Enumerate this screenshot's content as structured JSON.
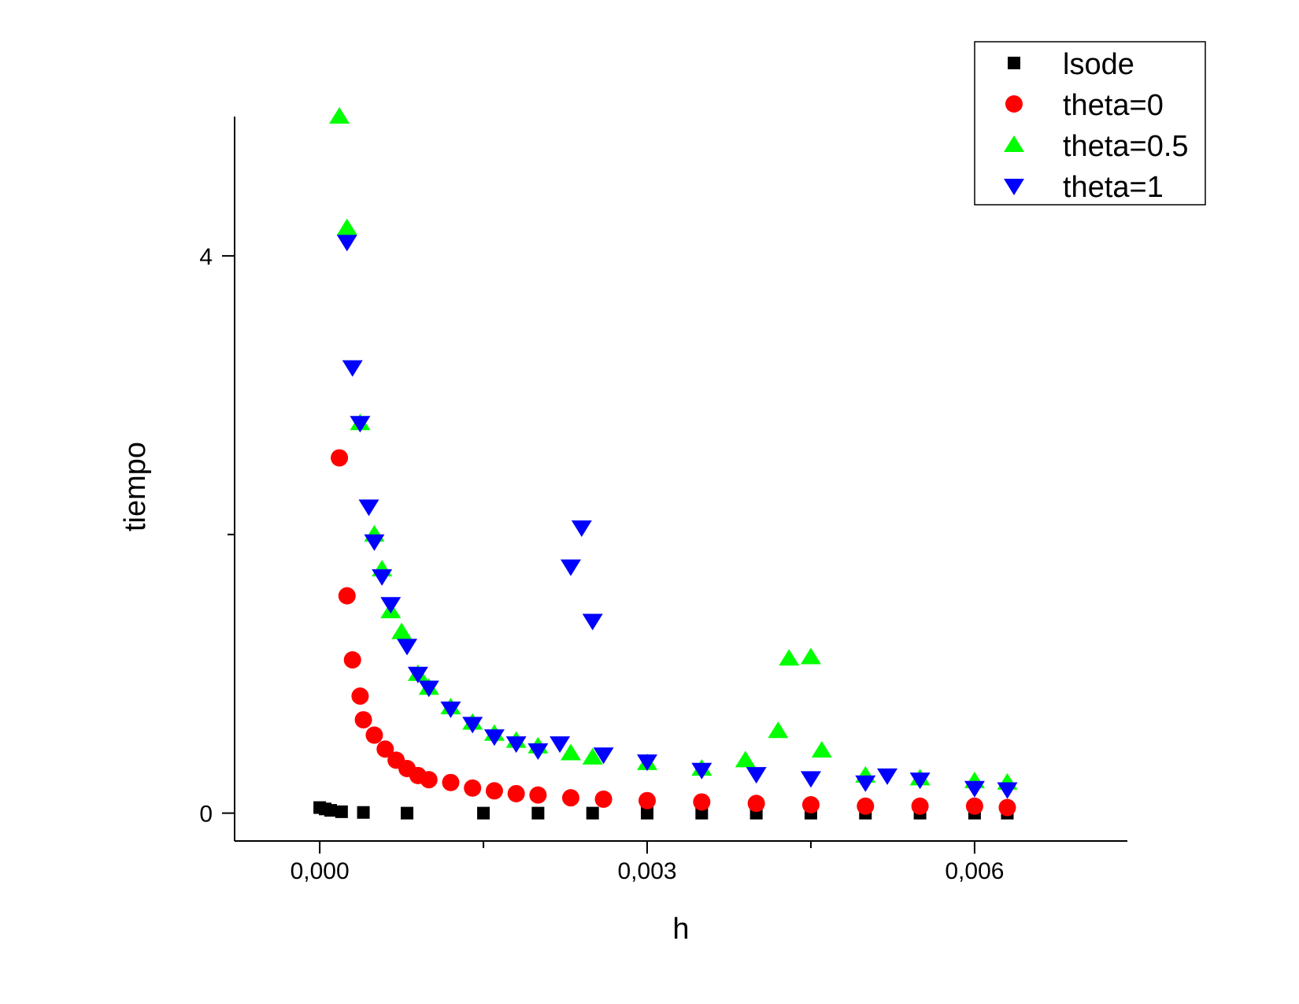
{
  "chart_data": {
    "type": "scatter",
    "title": "",
    "xlabel": "h",
    "ylabel": "tiempo",
    "xlim": [
      -0.00078,
      0.0074
    ],
    "ylim": [
      -0.2,
      5.0
    ],
    "x_ticks": [
      {
        "value": 0.0,
        "label": "0,000"
      },
      {
        "value": 0.003,
        "label": "0,003"
      },
      {
        "value": 0.006,
        "label": "0,006"
      }
    ],
    "x_minor_ticks": [
      0.0015,
      0.0045
    ],
    "y_ticks": [
      {
        "value": 0,
        "label": "0"
      },
      {
        "value": 4,
        "label": "4"
      }
    ],
    "y_minor_ticks": [
      2
    ],
    "legend_position": "top-right",
    "grid": false,
    "series": [
      {
        "name": "lsode",
        "marker": "square",
        "color": "#000000",
        "x": [
          0.0,
          5e-05,
          0.0001,
          0.0002,
          0.0004,
          0.0008,
          0.0015,
          0.002,
          0.0025,
          0.003,
          0.0035,
          0.004,
          0.0045,
          0.005,
          0.0055,
          0.006,
          0.0063
        ],
        "y": [
          0.04,
          0.03,
          0.02,
          0.01,
          0.005,
          0.0,
          0.0,
          0.0,
          0.0,
          0.0,
          0.0,
          0.0,
          0.0,
          0.0,
          0.0,
          0.0,
          0.0
        ]
      },
      {
        "name": "theta=0",
        "marker": "circle",
        "color": "#ff0000",
        "x": [
          0.00018,
          0.00025,
          0.0003,
          0.00037,
          0.0004,
          0.0005,
          0.0006,
          0.0007,
          0.0008,
          0.0009,
          0.001,
          0.0012,
          0.0014,
          0.0016,
          0.0018,
          0.002,
          0.0023,
          0.0026,
          0.003,
          0.0035,
          0.004,
          0.0045,
          0.005,
          0.0055,
          0.006,
          0.0063
        ],
        "y": [
          2.55,
          1.56,
          1.1,
          0.84,
          0.67,
          0.56,
          0.46,
          0.38,
          0.32,
          0.27,
          0.24,
          0.22,
          0.18,
          0.16,
          0.14,
          0.13,
          0.11,
          0.1,
          0.09,
          0.08,
          0.07,
          0.06,
          0.05,
          0.05,
          0.05,
          0.04
        ]
      },
      {
        "name": "theta=0.5",
        "marker": "triangle-up",
        "color": "#00ff00",
        "x": [
          0.00018,
          0.00025,
          0.00037,
          0.0005,
          0.00057,
          0.00065,
          0.00075,
          0.0009,
          0.001,
          0.0012,
          0.0014,
          0.0016,
          0.0018,
          0.002,
          0.0023,
          0.0025,
          0.003,
          0.0035,
          0.0039,
          0.0042,
          0.0043,
          0.0045,
          0.0046,
          0.005,
          0.0055,
          0.006,
          0.0063
        ],
        "y": [
          5.0,
          4.2,
          2.8,
          2.0,
          1.75,
          1.45,
          1.3,
          1.0,
          0.9,
          0.76,
          0.65,
          0.57,
          0.52,
          0.48,
          0.43,
          0.4,
          0.36,
          0.32,
          0.38,
          0.59,
          1.11,
          1.12,
          0.45,
          0.27,
          0.25,
          0.23,
          0.22
        ]
      },
      {
        "name": "theta=1",
        "marker": "triangle-down",
        "color": "#0000ff",
        "x": [
          0.00025,
          0.0003,
          0.00037,
          0.00045,
          0.0005,
          0.00057,
          0.00065,
          0.0008,
          0.0009,
          0.001,
          0.0012,
          0.0014,
          0.0016,
          0.0018,
          0.002,
          0.0022,
          0.0023,
          0.0024,
          0.0025,
          0.0026,
          0.003,
          0.0035,
          0.004,
          0.0045,
          0.005,
          0.0052,
          0.0055,
          0.006,
          0.0063
        ],
        "y": [
          4.1,
          3.2,
          2.8,
          2.2,
          1.95,
          1.7,
          1.5,
          1.2,
          1.0,
          0.9,
          0.75,
          0.64,
          0.55,
          0.5,
          0.45,
          0.5,
          1.77,
          2.05,
          1.38,
          0.42,
          0.37,
          0.31,
          0.28,
          0.25,
          0.22,
          0.27,
          0.24,
          0.18,
          0.17
        ]
      }
    ]
  }
}
